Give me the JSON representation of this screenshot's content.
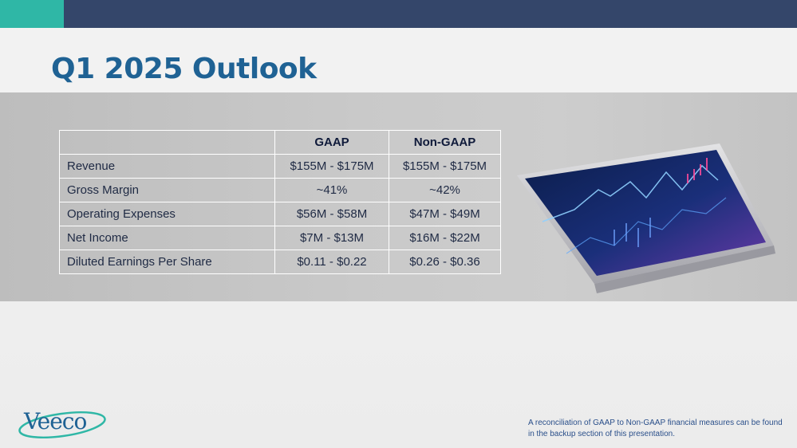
{
  "slide": {
    "title": "Q1 2025 Outlook",
    "footnote": "A reconciliation of GAAP to Non-GAAP financial measures can be found in the backup section of this presentation.",
    "logo_text": "Veeco"
  },
  "table": {
    "headers": [
      "",
      "GAAP",
      "Non-GAAP"
    ],
    "rows": [
      {
        "label": "Revenue",
        "gaap": "$155M - $175M",
        "non_gaap": "$155M - $175M"
      },
      {
        "label": "Gross Margin",
        "gaap": "~41%",
        "non_gaap": "~42%"
      },
      {
        "label": "Operating Expenses",
        "gaap": "$56M - $58M",
        "non_gaap": "$47M - $49M"
      },
      {
        "label": "Net Income",
        "gaap": "$7M - $13M",
        "non_gaap": "$16M - $22M"
      },
      {
        "label": "Diluted Earnings Per Share",
        "gaap": "$0.11 - $0.22",
        "non_gaap": "$0.26 - $0.36"
      }
    ]
  },
  "colors": {
    "top_bar": "#34466a",
    "accent": "#2fb7a6",
    "title": "#1f6294",
    "footnote": "#2a4f8a"
  }
}
